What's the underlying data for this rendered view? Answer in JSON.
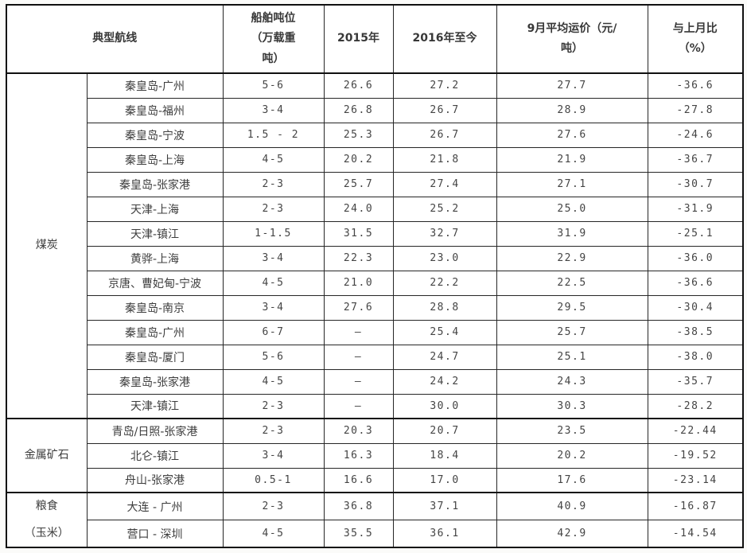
{
  "table": {
    "headers": {
      "route": "典型航线",
      "tonnage": "船舶吨位\n（万载重\n吨）",
      "y2015": "2015年",
      "y2016": "2016年至今",
      "sep_avg": "9月平均运价（元/\n吨）",
      "mom": "与上月比\n（%）"
    },
    "groups": [
      {
        "category": "煤炭",
        "rows": [
          {
            "route": "秦皇岛-广州",
            "tonnage": "5-6",
            "y2015": "26.6",
            "y2016": "27.2",
            "sep_avg": "27.7",
            "mom": "-36.6"
          },
          {
            "route": "秦皇岛-福州",
            "tonnage": "3-4",
            "y2015": "26.8",
            "y2016": "26.7",
            "sep_avg": "28.9",
            "mom": "-27.8"
          },
          {
            "route": "秦皇岛-宁波",
            "tonnage": "1.5 - 2",
            "y2015": "25.3",
            "y2016": "26.7",
            "sep_avg": "27.6",
            "mom": "-24.6"
          },
          {
            "route": "秦皇岛-上海",
            "tonnage": "4-5",
            "y2015": "20.2",
            "y2016": "21.8",
            "sep_avg": "21.9",
            "mom": "-36.7"
          },
          {
            "route": "秦皇岛-张家港",
            "tonnage": "2-3",
            "y2015": "25.7",
            "y2016": "27.4",
            "sep_avg": "27.1",
            "mom": "-30.7"
          },
          {
            "route": "天津-上海",
            "tonnage": "2-3",
            "y2015": "24.0",
            "y2016": "25.2",
            "sep_avg": "25.0",
            "mom": "-31.9"
          },
          {
            "route": "天津-镇江",
            "tonnage": "1-1.5",
            "y2015": "31.5",
            "y2016": "32.7",
            "sep_avg": "31.9",
            "mom": "-25.1"
          },
          {
            "route": "黄骅-上海",
            "tonnage": "3-4",
            "y2015": "22.3",
            "y2016": "23.0",
            "sep_avg": "22.9",
            "mom": "-36.0"
          },
          {
            "route": "京唐、曹妃甸-宁波",
            "tonnage": "4-5",
            "y2015": "21.0",
            "y2016": "22.2",
            "sep_avg": "22.5",
            "mom": "-36.6"
          },
          {
            "route": "秦皇岛-南京",
            "tonnage": "3-4",
            "y2015": "27.6",
            "y2016": "28.8",
            "sep_avg": "29.5",
            "mom": "-30.4"
          },
          {
            "route": "秦皇岛-广州",
            "tonnage": "6-7",
            "y2015": "–",
            "y2016": "25.4",
            "sep_avg": "25.7",
            "mom": "-38.5"
          },
          {
            "route": "秦皇岛-厦门",
            "tonnage": "5-6",
            "y2015": "–",
            "y2016": "24.7",
            "sep_avg": "25.1",
            "mom": "-38.0"
          },
          {
            "route": "秦皇岛-张家港",
            "tonnage": "4-5",
            "y2015": "–",
            "y2016": "24.2",
            "sep_avg": "24.3",
            "mom": "-35.7"
          },
          {
            "route": "天津-镇江",
            "tonnage": "2-3",
            "y2015": "–",
            "y2016": "30.0",
            "sep_avg": "30.3",
            "mom": "-28.2"
          }
        ]
      },
      {
        "category": "金属矿石",
        "rows": [
          {
            "route": "青岛/日照-张家港",
            "tonnage": "2-3",
            "y2015": "20.3",
            "y2016": "20.7",
            "sep_avg": "23.5",
            "mom": "-22.44"
          },
          {
            "route": "北仑-镇江",
            "tonnage": "3-4",
            "y2015": "16.3",
            "y2016": "18.4",
            "sep_avg": "20.2",
            "mom": "-19.52"
          },
          {
            "route": "舟山-张家港",
            "tonnage": "0.5-1",
            "y2015": "16.6",
            "y2016": "17.0",
            "sep_avg": "17.6",
            "mom": "-23.14"
          }
        ]
      },
      {
        "category": "粮食\n（玉米）",
        "rows": [
          {
            "route": "大连 - 广州",
            "tonnage": "2-3",
            "y2015": "36.8",
            "y2016": "37.1",
            "sep_avg": "40.9",
            "mom": "-16.87"
          },
          {
            "route": "营口 - 深圳",
            "tonnage": "4-5",
            "y2015": "35.5",
            "y2016": "36.1",
            "sep_avg": "42.9",
            "mom": "-14.54"
          }
        ]
      }
    ]
  }
}
